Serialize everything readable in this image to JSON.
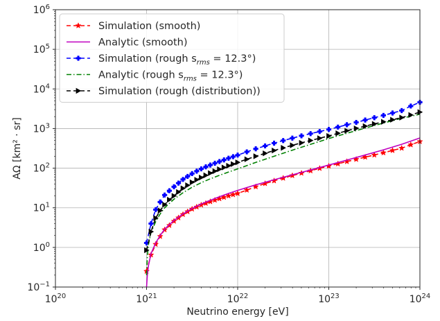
{
  "chart_data": {
    "type": "line",
    "xlabel": "Neutrino energy [eV]",
    "ylabel": "AΩ [km² · sr]",
    "xscale": "log",
    "yscale": "log",
    "xlim": [
      1e+20,
      1e+24
    ],
    "ylim": [
      0.1,
      1000000.0
    ],
    "grid": true,
    "legend_position": "top-left",
    "x_ticks": [
      {
        "value": 1e+20,
        "base": "10",
        "exp": "20"
      },
      {
        "value": 1e+21,
        "base": "10",
        "exp": "21"
      },
      {
        "value": 1e+22,
        "base": "10",
        "exp": "22"
      },
      {
        "value": 1e+23,
        "base": "10",
        "exp": "23"
      },
      {
        "value": 1e+24,
        "base": "10",
        "exp": "24"
      }
    ],
    "y_ticks": [
      {
        "value": 0.1,
        "base": "10",
        "exp": "−1"
      },
      {
        "value": 1,
        "base": "10",
        "exp": "0"
      },
      {
        "value": 10,
        "base": "10",
        "exp": "1"
      },
      {
        "value": 100,
        "base": "10",
        "exp": "2"
      },
      {
        "value": 1000,
        "base": "10",
        "exp": "3"
      },
      {
        "value": 10000,
        "base": "10",
        "exp": "4"
      },
      {
        "value": 100000,
        "base": "10",
        "exp": "5"
      },
      {
        "value": 1000000,
        "base": "10",
        "exp": "6"
      }
    ],
    "series": [
      {
        "name": "Simulation (smooth)",
        "legend_main": "Simulation (smooth)",
        "legend_sub": "",
        "legend_tail": "",
        "color": "#ff0000",
        "dash": "6,4",
        "marker": "star",
        "x": [
          1e+21,
          1.12e+21,
          1.26e+21,
          1.41e+21,
          1.58e+21,
          1.78e+21,
          2e+21,
          2.24e+21,
          2.51e+21,
          2.82e+21,
          3.16e+21,
          3.55e+21,
          3.98e+21,
          4.47e+21,
          5.01e+21,
          5.62e+21,
          6.31e+21,
          7.08e+21,
          7.94e+21,
          8.91e+21,
          1e+22,
          1.26e+22,
          1.58e+22,
          2e+22,
          2.51e+22,
          3.16e+22,
          3.98e+22,
          5.01e+22,
          6.31e+22,
          7.94e+22,
          1e+23,
          1.26e+23,
          1.58e+23,
          2e+23,
          2.51e+23,
          3.16e+23,
          3.98e+23,
          5.01e+23,
          6.31e+23,
          7.94e+23,
          1e+24
        ],
        "y": [
          0.25,
          0.65,
          1.2,
          1.9,
          2.8,
          3.6,
          4.6,
          5.6,
          6.8,
          8.0,
          9.3,
          10.5,
          11.8,
          13.0,
          14.3,
          15.6,
          17.0,
          18.4,
          20.0,
          21.5,
          23.0,
          28.0,
          34.0,
          41.0,
          48.0,
          56.0,
          65.0,
          75.0,
          86.0,
          99.0,
          113,
          129,
          147,
          167,
          190,
          215,
          245,
          280,
          320,
          390,
          470
        ]
      },
      {
        "name": "Analytic (smooth)",
        "legend_main": "Analytic (smooth)",
        "legend_sub": "",
        "legend_tail": "",
        "color": "#bf00bf",
        "dash": "",
        "marker": "none",
        "x": [
          1e+21,
          1.02e+21,
          1.05e+21,
          1.12e+21,
          1.26e+21,
          1.41e+21,
          1.58e+21,
          2e+21,
          2.51e+21,
          3.16e+21,
          3.98e+21,
          5.01e+21,
          6.31e+21,
          7.94e+21,
          1e+22,
          1.58e+22,
          2.51e+22,
          3.98e+22,
          6.31e+22,
          1e+23,
          1.58e+23,
          2.51e+23,
          3.98e+23,
          6.31e+23,
          1e+24
        ],
        "y": [
          0.1,
          0.2,
          0.35,
          0.7,
          1.3,
          2.0,
          2.9,
          4.8,
          7.0,
          9.6,
          12.5,
          15.5,
          19.0,
          23.0,
          27.5,
          38.0,
          51.0,
          68.0,
          90.0,
          120,
          160,
          215,
          290,
          400,
          580
        ]
      },
      {
        "name": "Simulation (rough s_rms = 12.3°)",
        "legend_main": "Simulation (rough s",
        "legend_sub": "rms",
        "legend_tail": " = 12.3°)",
        "color": "#0000ff",
        "dash": "6,4",
        "marker": "plus",
        "x": [
          1e+21,
          1.12e+21,
          1.26e+21,
          1.41e+21,
          1.58e+21,
          1.78e+21,
          2e+21,
          2.24e+21,
          2.51e+21,
          2.82e+21,
          3.16e+21,
          3.55e+21,
          3.98e+21,
          4.47e+21,
          5.01e+21,
          5.62e+21,
          6.31e+21,
          7.08e+21,
          7.94e+21,
          8.91e+21,
          1e+22,
          1.26e+22,
          1.58e+22,
          2e+22,
          2.51e+22,
          3.16e+22,
          3.98e+22,
          5.01e+22,
          6.31e+22,
          7.94e+22,
          1e+23,
          1.26e+23,
          1.58e+23,
          2e+23,
          2.51e+23,
          3.16e+23,
          3.98e+23,
          5.01e+23,
          6.31e+23,
          7.94e+23,
          1e+24
        ],
        "y": [
          1.3,
          4.0,
          9.0,
          14.0,
          21.0,
          27.0,
          34.0,
          42.0,
          52.0,
          62.0,
          73.0,
          84.0,
          96.0,
          108,
          120,
          133,
          147,
          162,
          178,
          195,
          214,
          258,
          308,
          365,
          428,
          497,
          573,
          655,
          745,
          842,
          950,
          1090,
          1250,
          1430,
          1640,
          1880,
          2150,
          2470,
          2840,
          3700,
          4600
        ]
      },
      {
        "name": "Analytic (rough s_rms = 12.3°)",
        "legend_main": "Analytic (rough s",
        "legend_sub": "rms",
        "legend_tail": " = 12.3°)",
        "color": "#008000",
        "dash": "7,3,1.5,3",
        "marker": "none",
        "x": [
          1e+21,
          1.02e+21,
          1.05e+21,
          1.12e+21,
          1.26e+21,
          1.41e+21,
          1.58e+21,
          2e+21,
          2.51e+21,
          3.16e+21,
          3.98e+21,
          5.01e+21,
          6.31e+21,
          7.94e+21,
          1e+22,
          1.58e+22,
          2.51e+22,
          3.98e+22,
          6.31e+22,
          1e+23,
          1.58e+23,
          2.51e+23,
          3.98e+23,
          6.31e+23,
          1e+24
        ],
        "y": [
          0.2,
          0.6,
          1.2,
          2.4,
          4.5,
          7.0,
          10.0,
          16.5,
          24.0,
          33.0,
          43.0,
          54.0,
          66.0,
          80.0,
          96.0,
          140,
          200,
          285,
          400,
          560,
          760,
          1030,
          1380,
          1820,
          2300
        ]
      },
      {
        "name": "Simulation (rough (distribution))",
        "legend_main": "Simulation (rough (distribution))",
        "legend_sub": "",
        "legend_tail": "",
        "color": "#000000",
        "dash": "6,4",
        "marker": "triangle-right",
        "x": [
          1e+21,
          1.12e+21,
          1.26e+21,
          1.41e+21,
          1.58e+21,
          1.78e+21,
          2e+21,
          2.24e+21,
          2.51e+21,
          2.82e+21,
          3.16e+21,
          3.55e+21,
          3.98e+21,
          4.47e+21,
          5.01e+21,
          5.62e+21,
          6.31e+21,
          7.08e+21,
          7.94e+21,
          8.91e+21,
          1e+22,
          1.26e+22,
          1.58e+22,
          2e+22,
          2.51e+22,
          3.16e+22,
          3.98e+22,
          5.01e+22,
          6.31e+22,
          7.94e+22,
          1e+23,
          1.26e+23,
          1.58e+23,
          2e+23,
          2.51e+23,
          3.16e+23,
          3.98e+23,
          5.01e+23,
          6.31e+23,
          7.94e+23,
          1e+24
        ],
        "y": [
          0.85,
          2.5,
          5.5,
          8.5,
          12.0,
          16.0,
          20.0,
          25.0,
          31.0,
          37.0,
          44.0,
          51.0,
          58.0,
          66.0,
          75.0,
          84.0,
          94.0,
          104,
          115,
          127,
          140,
          168,
          200,
          237,
          279,
          326,
          378,
          436,
          500,
          571,
          650,
          760,
          880,
          1010,
          1150,
          1310,
          1480,
          1670,
          1890,
          2200,
          2600
        ]
      }
    ]
  }
}
